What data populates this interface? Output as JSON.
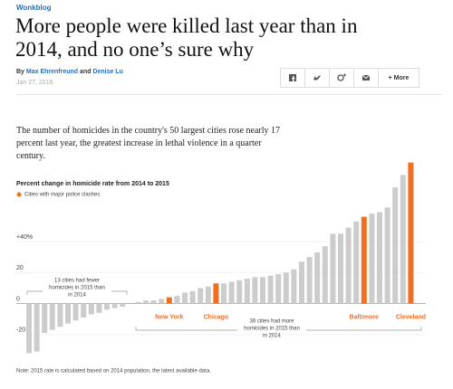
{
  "header": {
    "kicker": "Wonkblog",
    "title": "More people were killed last year than in 2014, and no one’s sure why",
    "by": "By",
    "author1": "Max Ehrenfreund",
    "and": "and",
    "author2": "Denise Lu",
    "date": "Jan 27, 2016",
    "more": "More"
  },
  "intro": "The number of homicides in the country's 50 largest cities rose nearly 17 percent last year, the greatest increase in lethal violence in a quarter century.",
  "chart_data": {
    "type": "bar",
    "title": "Percent change in homicide rate from 2014 to 2015",
    "legend": "Cities with major police clashes",
    "categories": [
      null,
      null,
      null,
      null,
      null,
      null,
      null,
      null,
      null,
      null,
      null,
      null,
      null,
      null,
      null,
      null,
      null,
      null,
      "New York",
      null,
      null,
      null,
      null,
      null,
      "Chicago",
      null,
      null,
      null,
      null,
      null,
      null,
      null,
      null,
      null,
      null,
      null,
      null,
      null,
      null,
      null,
      null,
      null,
      null,
      "Baltimore",
      null,
      null,
      null,
      null,
      null,
      "Cleveland"
    ],
    "values": [
      -32,
      -31,
      -19,
      -17,
      -15,
      -13,
      -11,
      -9,
      -7,
      -6,
      -4,
      -3,
      -2,
      0,
      1,
      2,
      2,
      3,
      4,
      5,
      7,
      8,
      10,
      11,
      13,
      13,
      14,
      15,
      16,
      17,
      17,
      18,
      19,
      20,
      22,
      27,
      30,
      33,
      37,
      45,
      45,
      49,
      53,
      56,
      58,
      59,
      62,
      75,
      83,
      91
    ],
    "color": "#cccccc",
    "highlight_color": "#f26f21",
    "highlighted": [
      18,
      24,
      43,
      49
    ],
    "ylim": [
      -33,
      92
    ],
    "yticks": [
      {
        "value": 40,
        "label": "+40%"
      },
      20,
      0,
      -20
    ],
    "grid": true,
    "annotations": [
      [
        "13 cities had fewer",
        "homicides in 2015 than",
        "in 2014"
      ],
      [
        "36 cities had more",
        "homicides in 2015 than",
        "in 2014"
      ]
    ],
    "note": "Note: 2015 rate is calculated based on 2014 population, the latest available data."
  }
}
